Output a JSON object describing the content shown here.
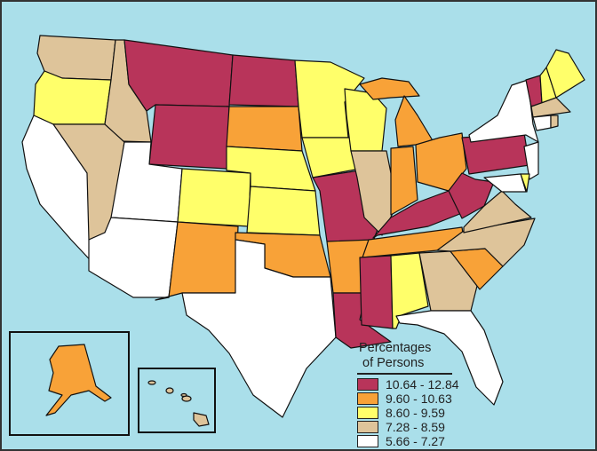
{
  "legend": {
    "title_line1": "Percentages",
    "title_line2": "of Persons",
    "classes": [
      {
        "label": "10.64 - 12.84",
        "color": "#B8345A"
      },
      {
        "label": "9.60 - 10.63",
        "color": "#F8A238"
      },
      {
        "label": "8.60 - 9.59",
        "color": "#FFFF6A"
      },
      {
        "label": "7.28 - 8.59",
        "color": "#DEC49A"
      },
      {
        "label": "5.66 - 7.27",
        "color": "#FFFFFF"
      }
    ]
  },
  "colors": {
    "water": "#AADFEA",
    "border": "#111111"
  },
  "states": {
    "WA": 3,
    "OR": 2,
    "CA": 4,
    "ID": 3,
    "NV": 3,
    "MT": 0,
    "WY": 0,
    "UT": 4,
    "AZ": 4,
    "CO": 2,
    "NM": 1,
    "ND": 0,
    "SD": 1,
    "NE": 2,
    "KS": 2,
    "OK": 1,
    "TX": 4,
    "MN": 2,
    "IA": 2,
    "MO": 0,
    "AR": 1,
    "LA": 0,
    "WI": 2,
    "IL": 3,
    "MI": 1,
    "IN": 1,
    "OH": 1,
    "KY": 0,
    "TN": 1,
    "MS": 0,
    "AL": 2,
    "GA": 3,
    "FL": 4,
    "SC": 1,
    "NC": 3,
    "VA": 3,
    "WV": 0,
    "PA": 0,
    "NY": 4,
    "VT": 0,
    "NH": 2,
    "ME": 2,
    "MA": 3,
    "CT": 4,
    "RI": 3,
    "NJ": 4,
    "DE": 2,
    "MD": 4,
    "AK": 1,
    "HI": 3
  }
}
